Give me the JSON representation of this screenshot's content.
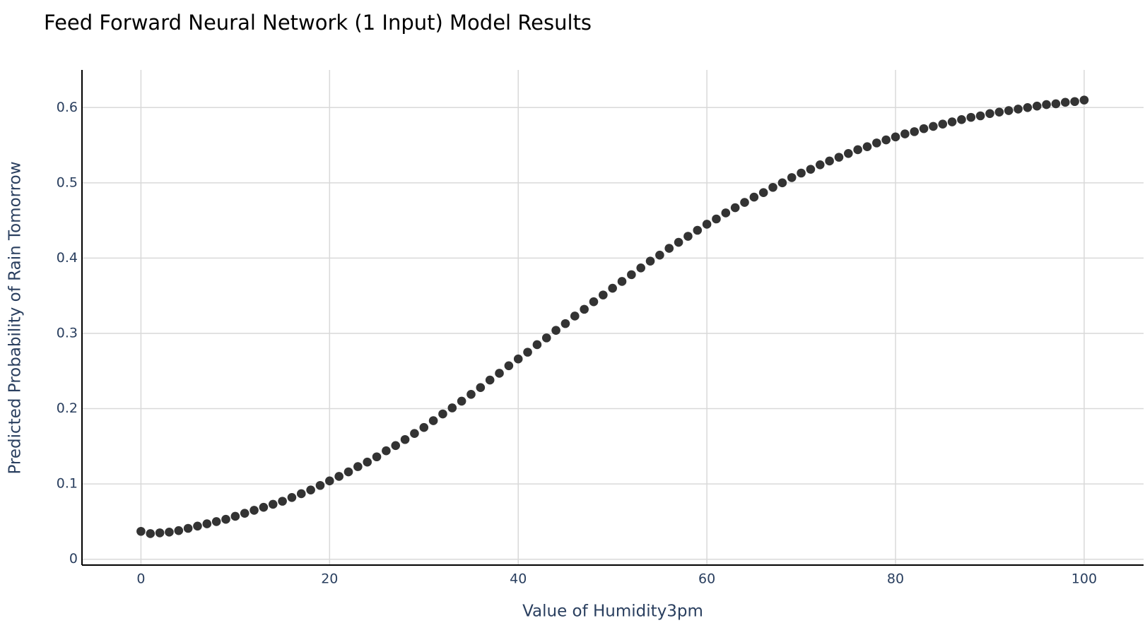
{
  "chart_data": {
    "type": "scatter",
    "title": "Feed Forward Neural Network (1 Input) Model Results",
    "x_label": "Value of Humidity3pm",
    "y_label": "Predicted Probability of Rain Tomorrow",
    "x": [
      0,
      1,
      2,
      3,
      4,
      5,
      6,
      7,
      8,
      9,
      10,
      11,
      12,
      13,
      14,
      15,
      16,
      17,
      18,
      19,
      20,
      21,
      22,
      23,
      24,
      25,
      26,
      27,
      28,
      29,
      30,
      31,
      32,
      33,
      34,
      35,
      36,
      37,
      38,
      39,
      40,
      41,
      42,
      43,
      44,
      45,
      46,
      47,
      48,
      49,
      50,
      51,
      52,
      53,
      54,
      55,
      56,
      57,
      58,
      59,
      60,
      61,
      62,
      63,
      64,
      65,
      66,
      67,
      68,
      69,
      70,
      71,
      72,
      73,
      74,
      75,
      76,
      77,
      78,
      79,
      80,
      81,
      82,
      83,
      84,
      85,
      86,
      87,
      88,
      89,
      90,
      91,
      92,
      93,
      94,
      95,
      96,
      97,
      98,
      99,
      100
    ],
    "series": [
      {
        "color": "#333333",
        "values": [
          0.037,
          0.034,
          0.035,
          0.036,
          0.038,
          0.041,
          0.044,
          0.047,
          0.05,
          0.053,
          0.057,
          0.061,
          0.065,
          0.069,
          0.073,
          0.077,
          0.082,
          0.087,
          0.092,
          0.098,
          0.104,
          0.11,
          0.116,
          0.123,
          0.129,
          0.136,
          0.144,
          0.151,
          0.159,
          0.167,
          0.175,
          0.184,
          0.193,
          0.201,
          0.21,
          0.219,
          0.228,
          0.238,
          0.247,
          0.257,
          0.266,
          0.275,
          0.285,
          0.294,
          0.304,
          0.313,
          0.323,
          0.332,
          0.342,
          0.351,
          0.36,
          0.369,
          0.378,
          0.387,
          0.396,
          0.404,
          0.413,
          0.421,
          0.429,
          0.437,
          0.445,
          0.452,
          0.46,
          0.467,
          0.474,
          0.481,
          0.487,
          0.494,
          0.5,
          0.507,
          0.513,
          0.518,
          0.524,
          0.529,
          0.534,
          0.539,
          0.544,
          0.548,
          0.553,
          0.557,
          0.561,
          0.565,
          0.568,
          0.572,
          0.575,
          0.578,
          0.581,
          0.584,
          0.587,
          0.589,
          0.592,
          0.594,
          0.596,
          0.598,
          0.6,
          0.602,
          0.604,
          0.605,
          0.607,
          0.608,
          0.61
        ]
      }
    ],
    "xlim": [
      -6.25,
      106.3
    ],
    "ylim": [
      -0.0078,
      0.65
    ],
    "xticks": [
      0,
      20,
      40,
      60,
      80,
      100
    ],
    "yticks": [
      0,
      0.1,
      0.2,
      0.3,
      0.4,
      0.5,
      0.6
    ],
    "grid": true
  }
}
